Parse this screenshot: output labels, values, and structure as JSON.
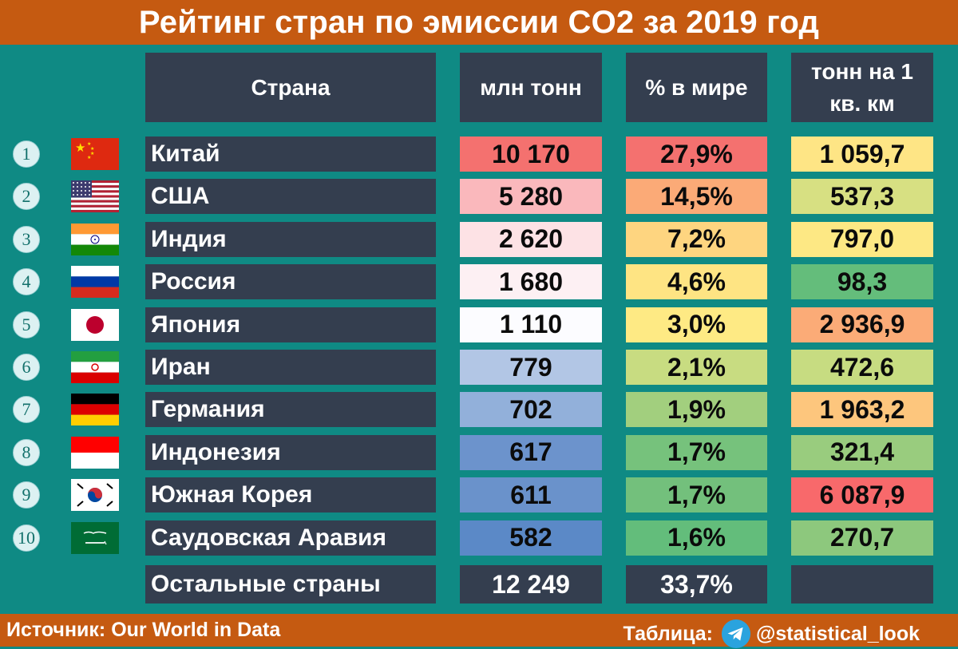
{
  "title": "Рейтинг стран по эмиссии CO2 за 2019 год",
  "headers": {
    "country": "Страна",
    "mln": "млн тонн",
    "pct": "% в мире",
    "density_line1": "тонн на 1",
    "density_line2": "кв. км"
  },
  "footer": {
    "source": "Источник: Our World in Data",
    "credit_prefix": "Таблица:",
    "credit_handle": "@statistical_look"
  },
  "chart_data": {
    "type": "table",
    "title": "Рейтинг стран по эмиссии CO2 за 2019 год",
    "columns": [
      "Страна",
      "млн тонн",
      "% в мире",
      "тонн на 1 кв. км"
    ],
    "rows": [
      {
        "rank": "1",
        "flag": "china-flag",
        "country": "Китай",
        "mln": "10 170",
        "pct": "27,9%",
        "density": "1 059,7",
        "mln_color": "#f4716f",
        "pct_color": "#f4716f",
        "density_color": "#fee585"
      },
      {
        "rank": "2",
        "flag": "usa-flag",
        "country": "США",
        "mln": "5 280",
        "pct": "14,5%",
        "density": "537,3",
        "mln_color": "#fab8bc",
        "pct_color": "#fbaa77",
        "density_color": "#d7e082"
      },
      {
        "rank": "3",
        "flag": "india-flag",
        "country": "Индия",
        "mln": "2 620",
        "pct": "7,2%",
        "density": "797,0",
        "mln_color": "#fde2e5",
        "pct_color": "#fed580",
        "density_color": "#fde884"
      },
      {
        "rank": "4",
        "flag": "russia-flag",
        "country": "Россия",
        "mln": "1 680",
        "pct": "4,6%",
        "density": "98,3",
        "mln_color": "#fdf0f3",
        "pct_color": "#fee483",
        "density_color": "#64bd7b"
      },
      {
        "rank": "5",
        "flag": "japan-flag",
        "country": "Япония",
        "mln": "1 110",
        "pct": "3,0%",
        "density": "2 936,9",
        "mln_color": "#fcfcff",
        "pct_color": "#feea84",
        "density_color": "#fbab77"
      },
      {
        "rank": "6",
        "flag": "iran-flag",
        "country": "Иран",
        "mln": "779",
        "pct": "2,1%",
        "density": "472,6",
        "mln_color": "#b2c6e5",
        "pct_color": "#c8dc81",
        "density_color": "#c7dc81"
      },
      {
        "rank": "7",
        "flag": "germany-flag",
        "country": "Германия",
        "mln": "702",
        "pct": "1,9%",
        "density": "1 963,2",
        "mln_color": "#92b0da",
        "pct_color": "#a2cf7e",
        "density_color": "#fdc67d"
      },
      {
        "rank": "8",
        "flag": "indonesia-flag",
        "country": "Индонезия",
        "mln": "617",
        "pct": "1,7%",
        "density": "321,4",
        "mln_color": "#6c93cc",
        "pct_color": "#76c27c",
        "density_color": "#99cc7e"
      },
      {
        "rank": "9",
        "flag": "south-korea-flag",
        "country": "Южная Корея",
        "mln": "611",
        "pct": "1,7%",
        "density": "6 087,9",
        "mln_color": "#6a92cb",
        "pct_color": "#73c07c",
        "density_color": "#f8696b"
      },
      {
        "rank": "10",
        "flag": "saudi-arabia-flag",
        "country": "Саудовская Аравия",
        "mln": "582",
        "pct": "1,6%",
        "density": "270,7",
        "mln_color": "#5b89c7",
        "pct_color": "#63bd7b",
        "density_color": "#8dc87d"
      }
    ],
    "others": {
      "country": "Остальные страны",
      "mln": "12 249",
      "pct": "33,7%",
      "density": ""
    }
  }
}
